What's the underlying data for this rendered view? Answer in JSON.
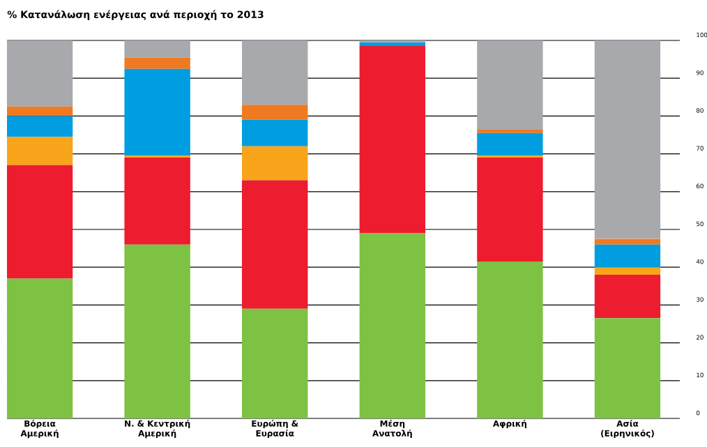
{
  "chart_data": {
    "type": "bar",
    "title": "% Κατανάλωση ενέργειας ανά περιοχή το 2013",
    "categories": [
      "Βόρεια Αμερική",
      "Ν. & Κεντρική Αμερική",
      "Ευρώπη & Ευρασία",
      "Μέση Ανατολή",
      "Αφρική",
      "Ασία (Ειρηνικός)"
    ],
    "stacked": true,
    "series": [
      {
        "color": "#7dc242",
        "values": [
          37,
          46,
          29,
          49,
          41.5,
          26.5
        ]
      },
      {
        "color": "#ed1c2e",
        "values": [
          30,
          23,
          34,
          49.5,
          27.5,
          11.5
        ]
      },
      {
        "color": "#f8a51b",
        "values": [
          7.5,
          0.5,
          9,
          0,
          0.5,
          2
        ]
      },
      {
        "color": "#009ee0",
        "values": [
          5.5,
          23,
          7,
          1,
          6,
          6
        ]
      },
      {
        "color": "#f07a22",
        "values": [
          2.5,
          3,
          4,
          0,
          1,
          1.5
        ]
      },
      {
        "color": "#a7a9ac",
        "values": [
          17.5,
          4.5,
          17,
          0.5,
          23.5,
          52.5
        ]
      }
    ],
    "ylim": [
      0,
      100
    ],
    "yticks": [
      0,
      10,
      20,
      30,
      40,
      50,
      60,
      70,
      80,
      90,
      100
    ],
    "grid": "y"
  }
}
